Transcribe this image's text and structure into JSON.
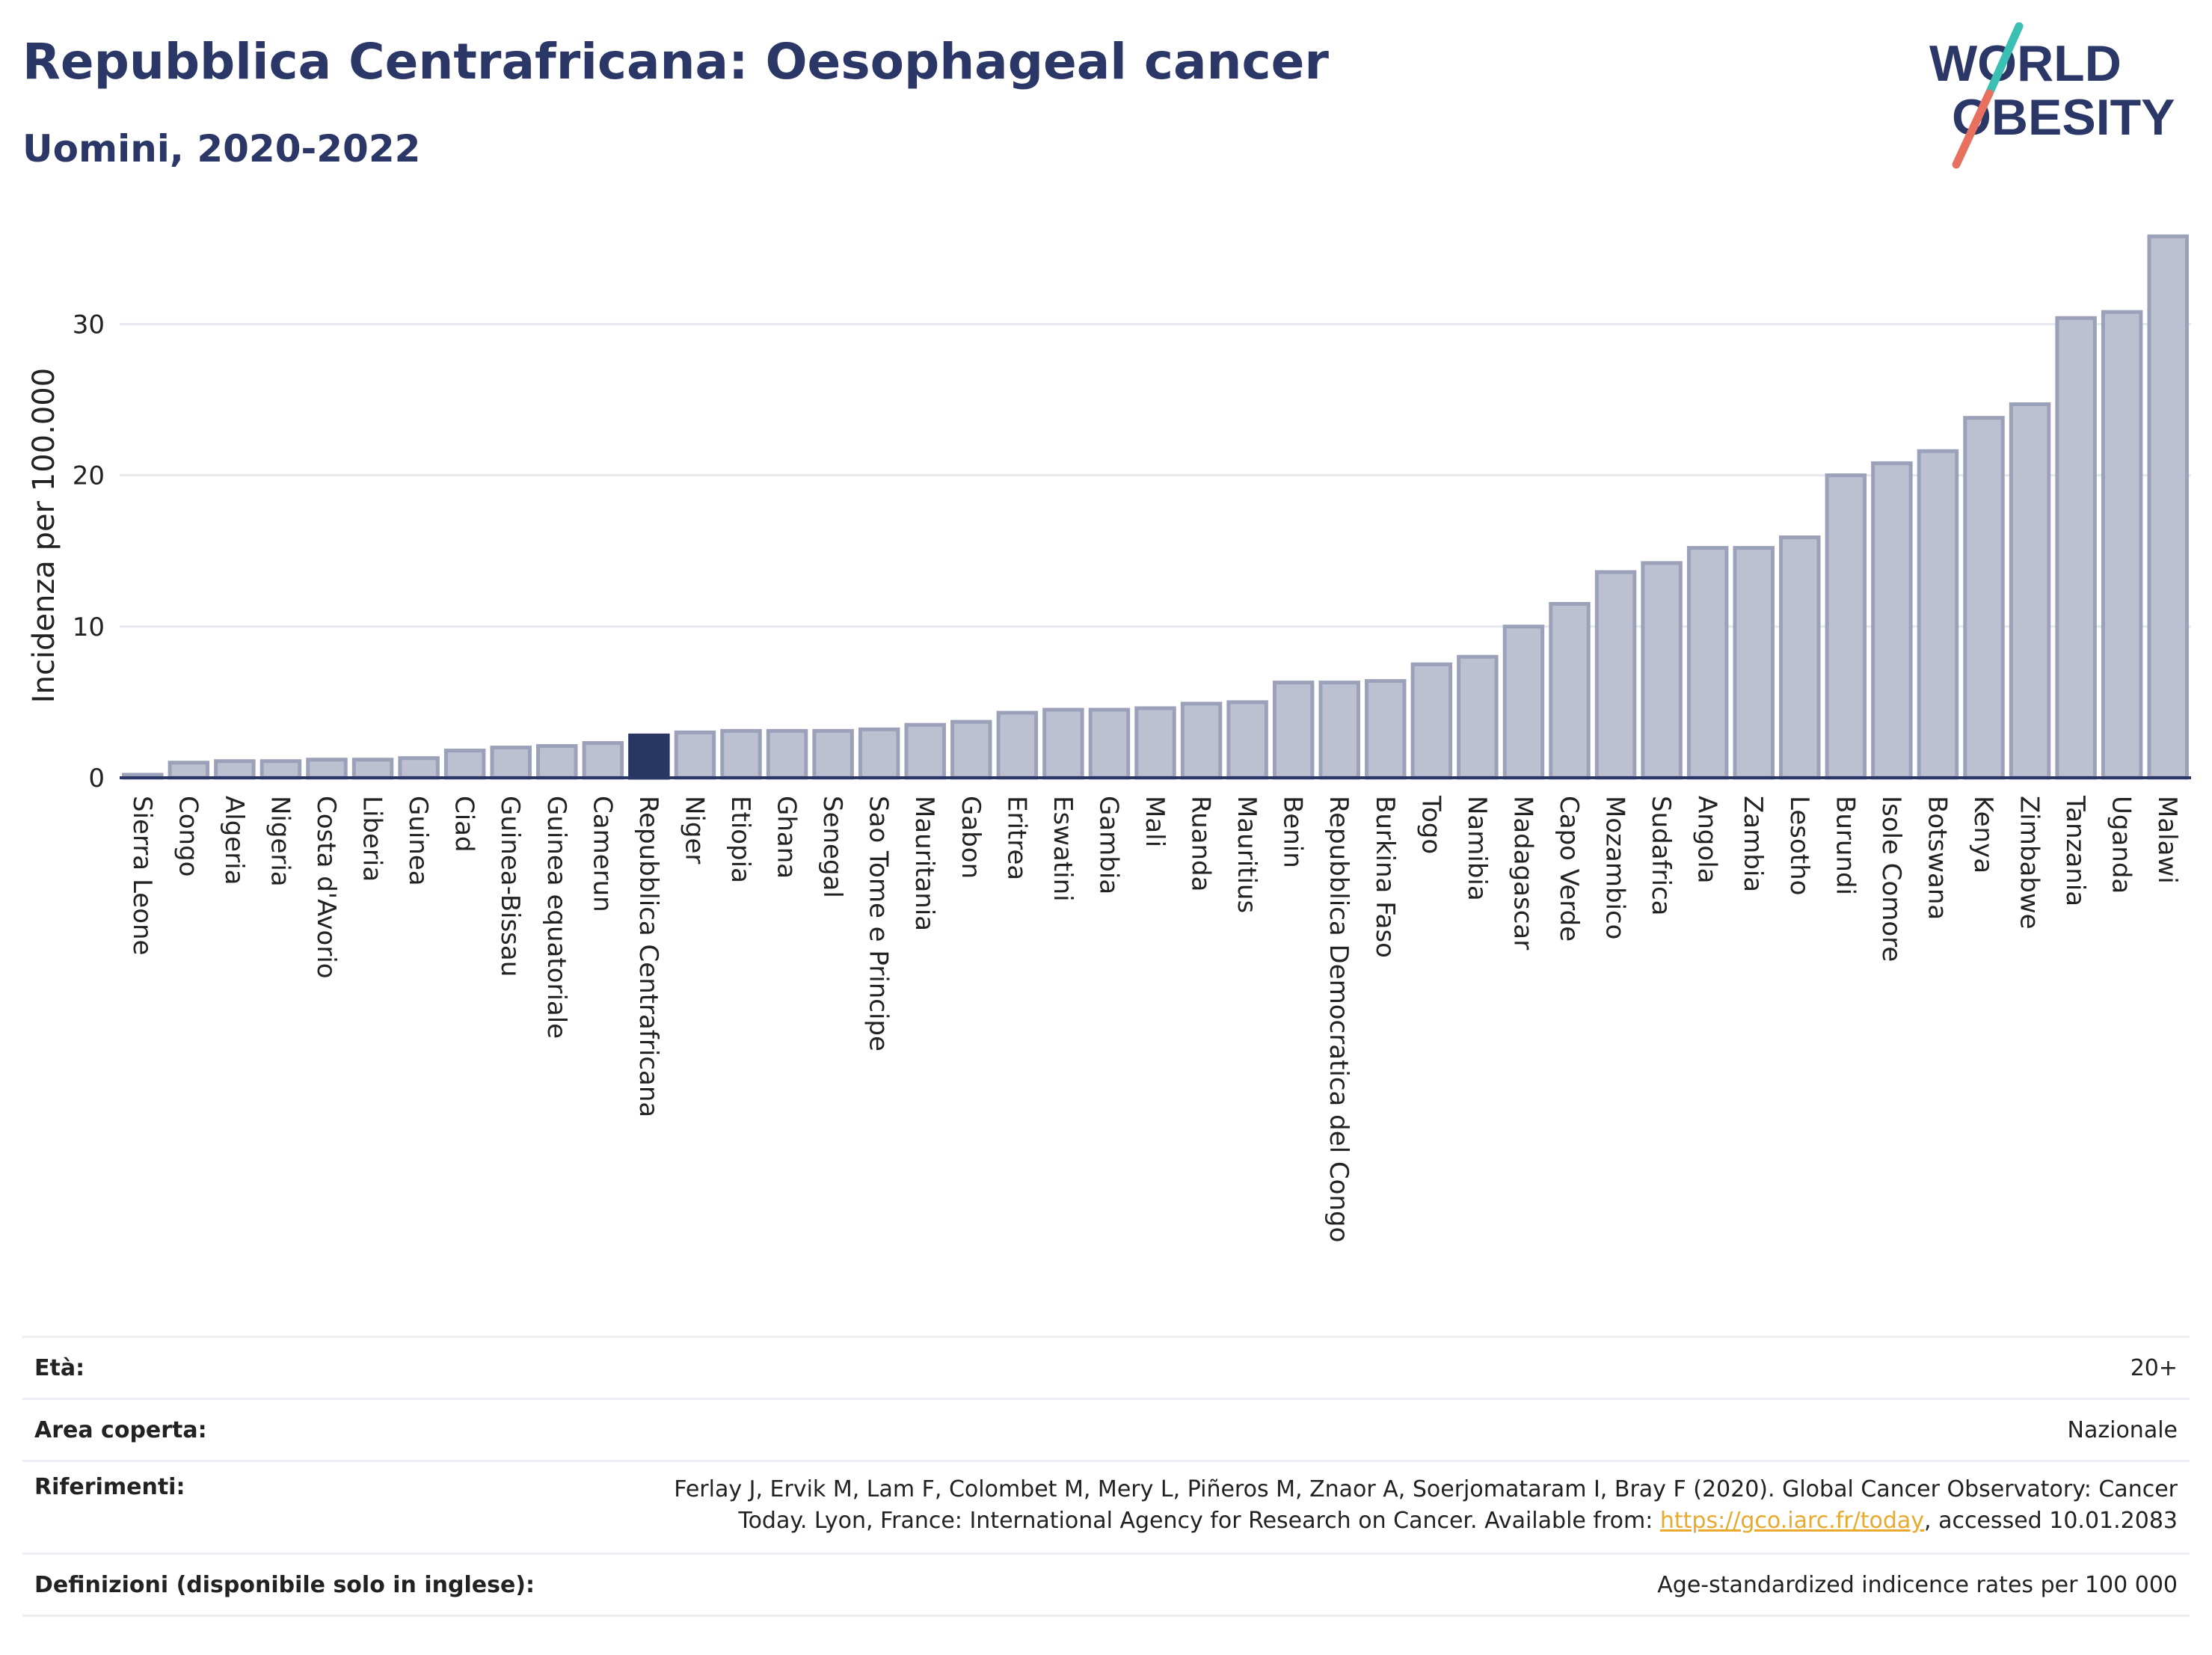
{
  "header": {
    "title": "Repubblica Centrafricana: Oesophageal cancer",
    "subtitle": "Uomini, 2020-2022"
  },
  "logo": {
    "line1": "WORLD",
    "line2": "OBESITY",
    "colors": {
      "text": "#2b3766",
      "slash_top": "#3bbfb3",
      "slash_bottom": "#e8705f"
    }
  },
  "colors": {
    "bar_fill": "#bcc0d0",
    "bar_stroke": "#9ba1b8",
    "highlight_fill": "#283664",
    "grid": "#e6e8ee",
    "axis": "#2b3766"
  },
  "chart_data": {
    "type": "bar",
    "ylabel": "Incidenza per 100.000",
    "ylim": [
      0,
      36
    ],
    "yticks": [
      0,
      10,
      20,
      30
    ],
    "grid": true,
    "highlight": "Repubblica Centrafricana",
    "categories": [
      "Sierra Leone",
      "Congo",
      "Algeria",
      "Nigeria",
      "Costa d'Avorio",
      "Liberia",
      "Guinea",
      "Ciad",
      "Guinea-Bissau",
      "Guinea equatoriale",
      "Camerun",
      "Repubblica Centrafricana",
      "Niger",
      "Etiopia",
      "Ghana",
      "Senegal",
      "Sao Tome e Principe",
      "Mauritania",
      "Gabon",
      "Eritrea",
      "Eswatini",
      "Gambia",
      "Mali",
      "Ruanda",
      "Mauritius",
      "Benin",
      "Repubblica Democratica del Congo",
      "Burkina Faso",
      "Togo",
      "Namibia",
      "Madagascar",
      "Capo Verde",
      "Mozambico",
      "Sudafrica",
      "Angola",
      "Zambia",
      "Lesotho",
      "Burundi",
      "Isole Comore",
      "Botswana",
      "Kenya",
      "Zimbabwe",
      "Tanzania",
      "Uganda",
      "Malawi"
    ],
    "values": [
      0.2,
      1.0,
      1.1,
      1.1,
      1.2,
      1.2,
      1.3,
      1.8,
      2.0,
      2.1,
      2.3,
      2.8,
      3.0,
      3.1,
      3.1,
      3.1,
      3.2,
      3.5,
      3.7,
      4.3,
      4.5,
      4.5,
      4.6,
      4.9,
      5.0,
      6.3,
      6.3,
      6.4,
      7.5,
      8.0,
      10.0,
      11.5,
      13.6,
      14.2,
      15.2,
      15.2,
      15.9,
      20.0,
      20.8,
      21.6,
      23.8,
      24.7,
      30.4,
      30.8,
      35.8
    ]
  },
  "info": {
    "rows": [
      {
        "label": "Età:",
        "value": "20+"
      },
      {
        "label": "Area coperta:",
        "value": "Nazionale"
      },
      {
        "label": "Riferimenti:",
        "value_line1": "Ferlay J, Ervik M, Lam F, Colombet M, Mery L, Piñeros M, Znaor A, Soerjomataram I, Bray F (2020). Global Cancer Observatory: Cancer",
        "value_line2_prefix": "Today. Lyon, France: International Agency for Research on Cancer. Available from: ",
        "link": "https://gco.iarc.fr/today",
        "value_line2_suffix": ", accessed 10.01.2083"
      },
      {
        "label": "Definizioni (disponibile solo in inglese):",
        "value": "Age-standardized indicence rates per 100 000"
      }
    ]
  }
}
